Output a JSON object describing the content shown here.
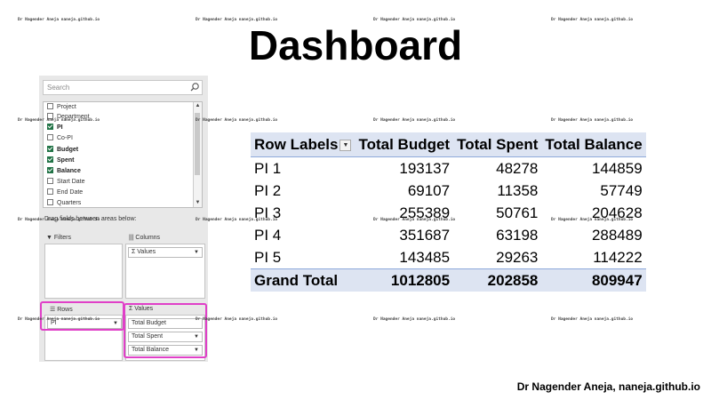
{
  "slide": {
    "title": "Dashboard",
    "footer": "Dr Nagender Aneja, naneja.github.io",
    "watermark": "Dr Nagender Aneja naneja.github.io"
  },
  "pane": {
    "search_placeholder": "Search",
    "fields": [
      {
        "label": "Project",
        "checked": false
      },
      {
        "label": "Department",
        "checked": false
      },
      {
        "label": "PI",
        "checked": true
      },
      {
        "label": "Co-PI",
        "checked": false
      },
      {
        "label": "Budget",
        "checked": true
      },
      {
        "label": "Spent",
        "checked": true
      },
      {
        "label": "Balance",
        "checked": true
      },
      {
        "label": "Start Date",
        "checked": false
      },
      {
        "label": "End Date",
        "checked": false
      },
      {
        "label": "Quarters",
        "checked": false
      }
    ],
    "drag_text": "Drag fields between areas below:",
    "filters_label": "Filters",
    "columns_label": "Columns",
    "columns_item": "Σ Values",
    "rows_label": "Rows",
    "rows_item": "PI",
    "values_label": "Values",
    "values_items": [
      "Total Budget",
      "Total Spent",
      "Total Balance"
    ],
    "colors": {
      "highlight": "#e040c8",
      "checked": "#217346"
    }
  },
  "pivot": {
    "headers": [
      "Row Labels",
      "Total Budget",
      "Total Spent",
      "Total Balance"
    ],
    "rows": [
      [
        "PI 1",
        "193137",
        "48278",
        "144859"
      ],
      [
        "PI 2",
        "69107",
        "11358",
        "57749"
      ],
      [
        "PI 3",
        "255389",
        "50761",
        "204628"
      ],
      [
        "PI 4",
        "351687",
        "63198",
        "288489"
      ],
      [
        "PI 5",
        "143485",
        "29263",
        "114222"
      ]
    ],
    "grand_total": [
      "Grand Total",
      "1012805",
      "202858",
      "809947"
    ],
    "colors": {
      "header_bg": "#dde4f2"
    }
  }
}
